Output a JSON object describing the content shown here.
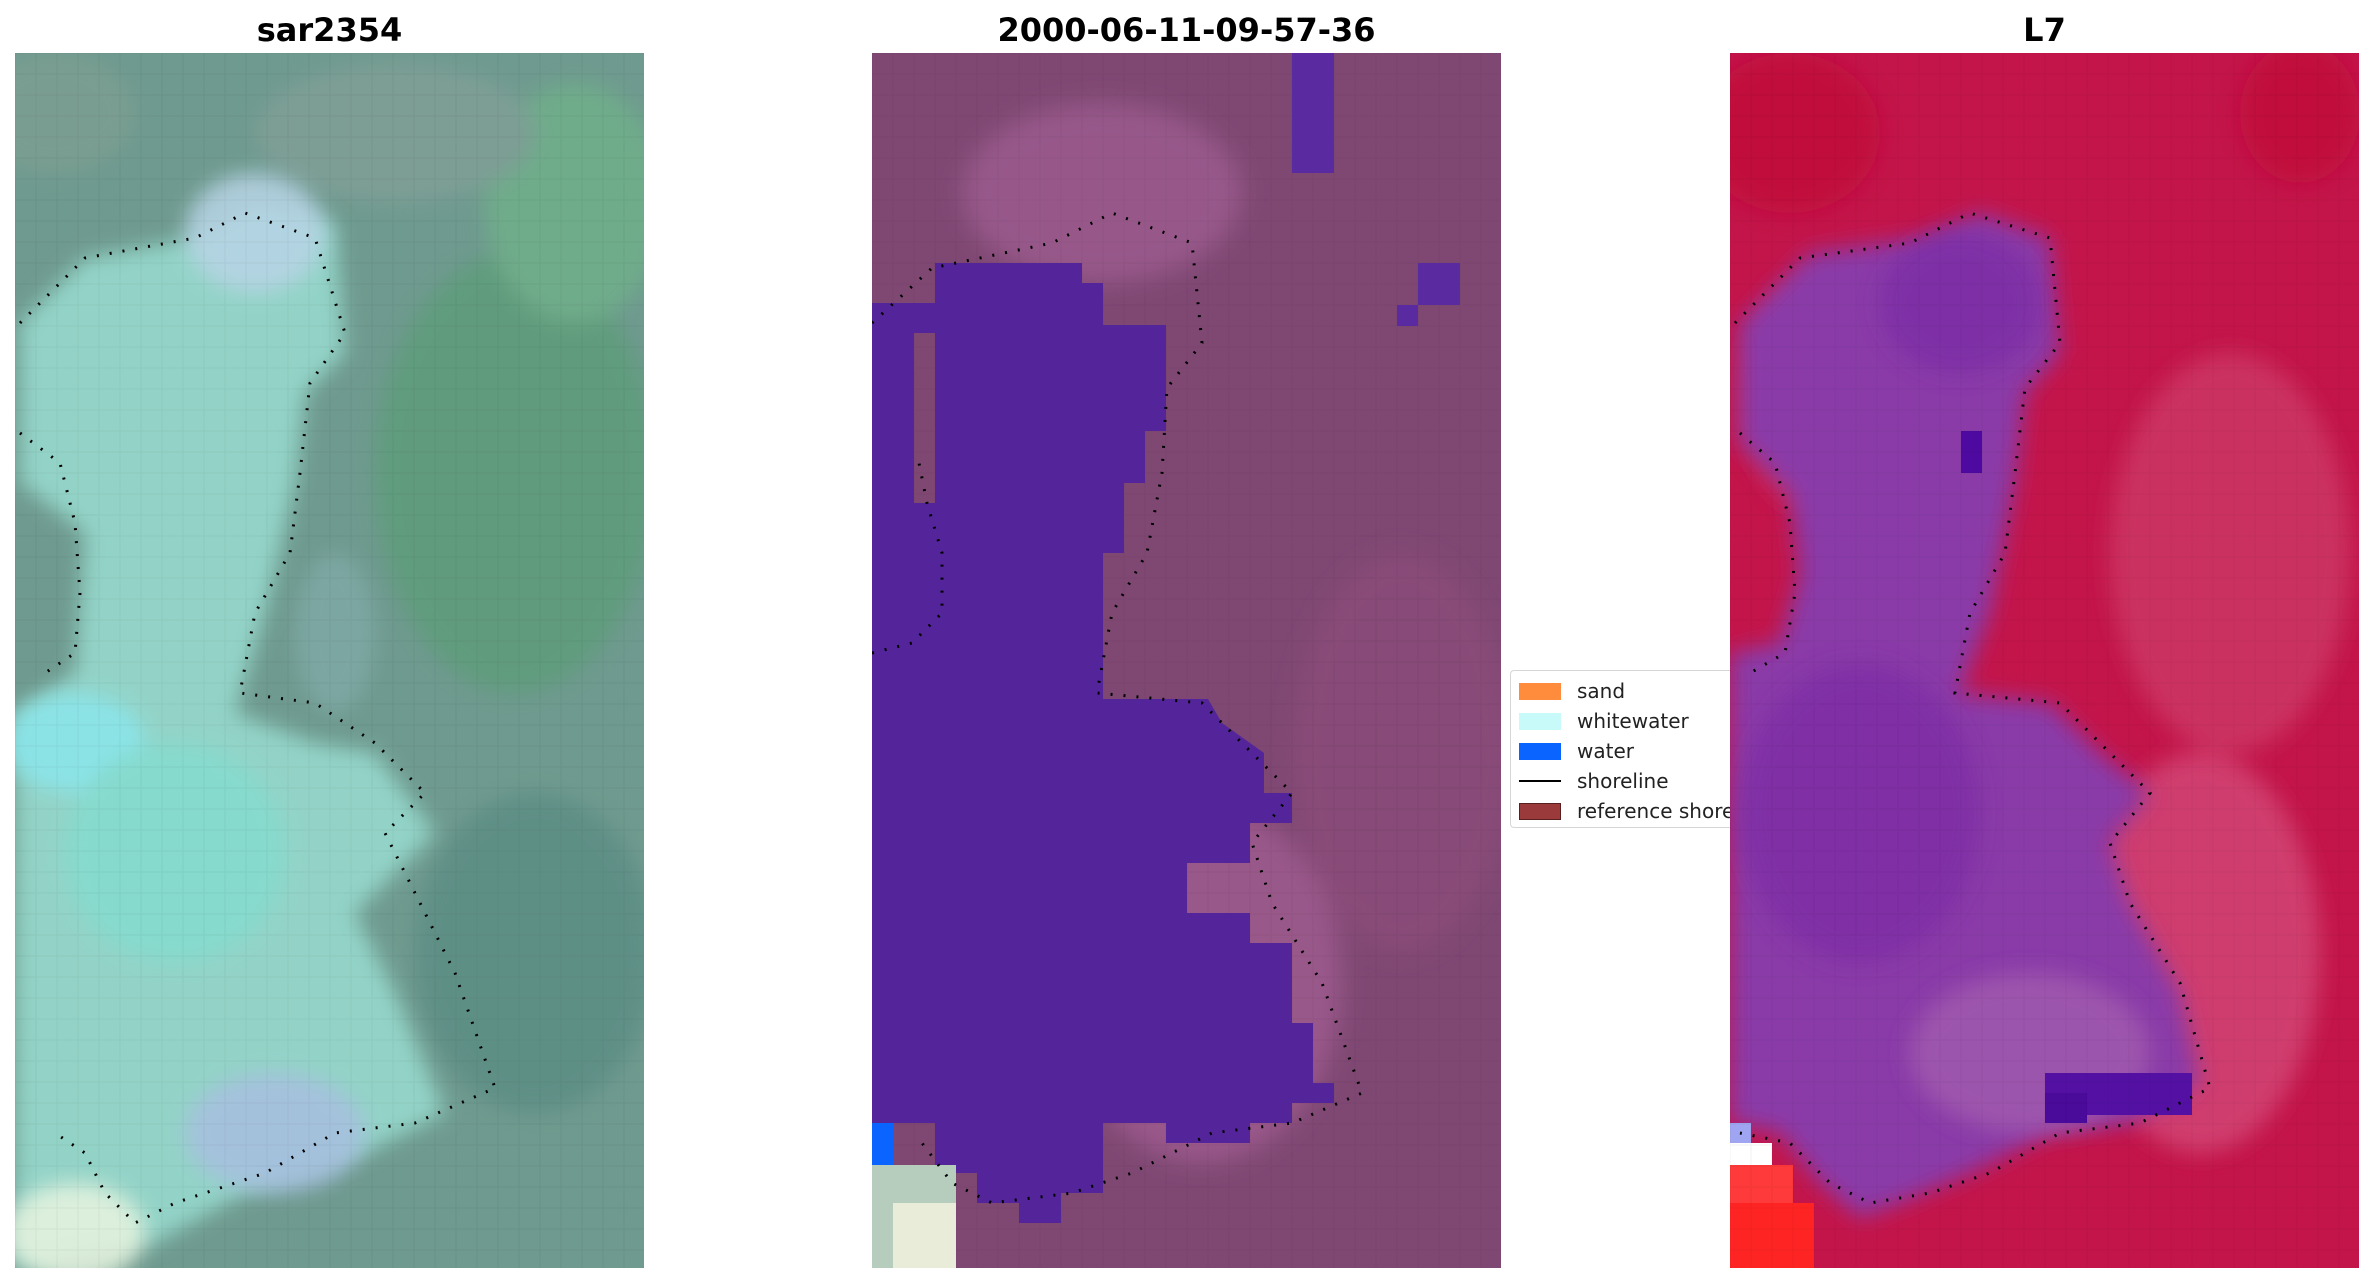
{
  "panels": [
    {
      "title": "sar2354"
    },
    {
      "title": "2000-06-11-09-57-36"
    },
    {
      "title": "L7"
    }
  ],
  "legend": {
    "items": [
      {
        "label": "sand",
        "kind": "patch",
        "color": "#ff8c3c"
      },
      {
        "label": "whitewater",
        "kind": "patch",
        "color": "#c8fafa"
      },
      {
        "label": "water",
        "kind": "patch",
        "color": "#0a64ff"
      },
      {
        "label": "shoreline",
        "kind": "line",
        "color": "#000000"
      },
      {
        "label": "reference shoreline",
        "kind": "patch",
        "color": "#9b3a3a"
      }
    ]
  },
  "colors": {
    "rgb_panel_base": "#6f9a8f",
    "rgb_panel_water": "#8fd8cf",
    "classified_panel_base": "#7f4873",
    "classified_water_mask": "#54259a",
    "index_panel_base": "#c3154a",
    "index_panel_water": "#8c3aa6"
  }
}
